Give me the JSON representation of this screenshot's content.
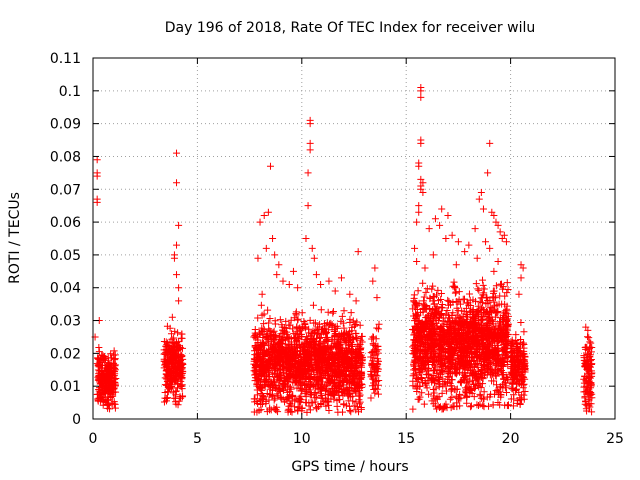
{
  "chart_data": {
    "type": "scatter",
    "title": "Day 196 of 2018, Rate Of TEC Index for receiver wilu",
    "xlabel": "GPS time / hours",
    "ylabel": "ROTI / TECUs",
    "xlim": [
      0,
      25
    ],
    "ylim": [
      0,
      0.11
    ],
    "grid": true,
    "marker": "+",
    "series_color": "#ff0000",
    "x_ticks": [
      0,
      5,
      10,
      15,
      20,
      25
    ],
    "x_tick_labels": [
      "0",
      "5",
      "10",
      "15",
      "20",
      "25"
    ],
    "y_ticks": [
      0,
      0.01,
      0.02,
      0.03,
      0.04,
      0.05,
      0.06,
      0.07,
      0.08,
      0.09,
      0.1,
      0.11
    ],
    "y_tick_labels": [
      "0",
      "0.01",
      "0.02",
      "0.03",
      "0.04",
      "0.05",
      "0.06",
      "0.07",
      "0.08",
      "0.09",
      "0.1",
      "0.11"
    ],
    "clusters": [
      {
        "x_range": [
          0.2,
          1.1
        ],
        "y_range": [
          0.003,
          0.024
        ],
        "count": 260
      },
      {
        "x_range": [
          3.4,
          4.3
        ],
        "y_range": [
          0.004,
          0.03
        ],
        "count": 280
      },
      {
        "x_range": [
          7.7,
          12.9
        ],
        "y_range": [
          0.002,
          0.035
        ],
        "count": 1700
      },
      {
        "x_range": [
          13.3,
          13.7
        ],
        "y_range": [
          0.006,
          0.03
        ],
        "count": 70
      },
      {
        "x_range": [
          15.3,
          19.9
        ],
        "y_range": [
          0.003,
          0.045
        ],
        "count": 1700
      },
      {
        "x_range": [
          20.0,
          20.7
        ],
        "y_range": [
          0.004,
          0.03
        ],
        "count": 200
      },
      {
        "x_range": [
          23.5,
          23.9
        ],
        "y_range": [
          0.002,
          0.028
        ],
        "count": 110
      }
    ],
    "points": [
      [
        0.2,
        0.074
      ],
      [
        0.2,
        0.075
      ],
      [
        0.2,
        0.079
      ],
      [
        0.2,
        0.066
      ],
      [
        0.2,
        0.067
      ],
      [
        0.3,
        0.03
      ],
      [
        0.1,
        0.025
      ],
      [
        4.0,
        0.081
      ],
      [
        4.0,
        0.072
      ],
      [
        4.1,
        0.059
      ],
      [
        4.0,
        0.053
      ],
      [
        3.9,
        0.05
      ],
      [
        3.9,
        0.049
      ],
      [
        4.0,
        0.044
      ],
      [
        4.1,
        0.04
      ],
      [
        4.1,
        0.036
      ],
      [
        3.8,
        0.031
      ],
      [
        8.5,
        0.077
      ],
      [
        8.2,
        0.062
      ],
      [
        8.4,
        0.063
      ],
      [
        8.0,
        0.06
      ],
      [
        8.6,
        0.055
      ],
      [
        8.3,
        0.052
      ],
      [
        8.7,
        0.05
      ],
      [
        7.9,
        0.049
      ],
      [
        8.9,
        0.047
      ],
      [
        9.6,
        0.045
      ],
      [
        9.4,
        0.041
      ],
      [
        8.8,
        0.044
      ],
      [
        9.1,
        0.042
      ],
      [
        9.8,
        0.04
      ],
      [
        8.1,
        0.038
      ],
      [
        10.4,
        0.091
      ],
      [
        10.4,
        0.09
      ],
      [
        10.4,
        0.084
      ],
      [
        10.4,
        0.082
      ],
      [
        10.3,
        0.075
      ],
      [
        10.3,
        0.065
      ],
      [
        10.2,
        0.055
      ],
      [
        10.5,
        0.052
      ],
      [
        10.6,
        0.049
      ],
      [
        10.7,
        0.044
      ],
      [
        10.9,
        0.041
      ],
      [
        11.3,
        0.042
      ],
      [
        11.9,
        0.043
      ],
      [
        12.7,
        0.051
      ],
      [
        12.3,
        0.038
      ],
      [
        12.6,
        0.036
      ],
      [
        11.6,
        0.039
      ],
      [
        13.5,
        0.046
      ],
      [
        13.4,
        0.042
      ],
      [
        13.6,
        0.037
      ],
      [
        15.7,
        0.101
      ],
      [
        15.7,
        0.1
      ],
      [
        15.7,
        0.098
      ],
      [
        15.7,
        0.085
      ],
      [
        15.7,
        0.084
      ],
      [
        15.6,
        0.078
      ],
      [
        15.6,
        0.077
      ],
      [
        15.7,
        0.073
      ],
      [
        15.8,
        0.072
      ],
      [
        15.7,
        0.071
      ],
      [
        15.7,
        0.07
      ],
      [
        15.8,
        0.069
      ],
      [
        15.6,
        0.065
      ],
      [
        15.6,
        0.063
      ],
      [
        15.5,
        0.06
      ],
      [
        16.1,
        0.058
      ],
      [
        16.4,
        0.061
      ],
      [
        16.7,
        0.064
      ],
      [
        16.6,
        0.059
      ],
      [
        16.9,
        0.055
      ],
      [
        15.4,
        0.052
      ],
      [
        16.3,
        0.05
      ],
      [
        15.5,
        0.048
      ],
      [
        15.9,
        0.046
      ],
      [
        17.0,
        0.062
      ],
      [
        17.2,
        0.056
      ],
      [
        17.5,
        0.054
      ],
      [
        17.8,
        0.051
      ],
      [
        17.4,
        0.047
      ],
      [
        18.6,
        0.069
      ],
      [
        18.5,
        0.067
      ],
      [
        18.9,
        0.075
      ],
      [
        19.0,
        0.084
      ],
      [
        18.7,
        0.064
      ],
      [
        19.1,
        0.063
      ],
      [
        19.2,
        0.062
      ],
      [
        19.3,
        0.06
      ],
      [
        19.4,
        0.059
      ],
      [
        19.5,
        0.057
      ],
      [
        19.6,
        0.055
      ],
      [
        18.8,
        0.054
      ],
      [
        19.0,
        0.052
      ],
      [
        19.7,
        0.056
      ],
      [
        19.8,
        0.054
      ],
      [
        19.4,
        0.048
      ],
      [
        19.2,
        0.045
      ],
      [
        18.3,
        0.058
      ],
      [
        18.0,
        0.053
      ],
      [
        18.4,
        0.049
      ],
      [
        20.5,
        0.047
      ],
      [
        20.6,
        0.046
      ],
      [
        20.5,
        0.043
      ],
      [
        20.4,
        0.038
      ],
      [
        23.6,
        0.028
      ],
      [
        23.7,
        0.027
      ]
    ]
  }
}
